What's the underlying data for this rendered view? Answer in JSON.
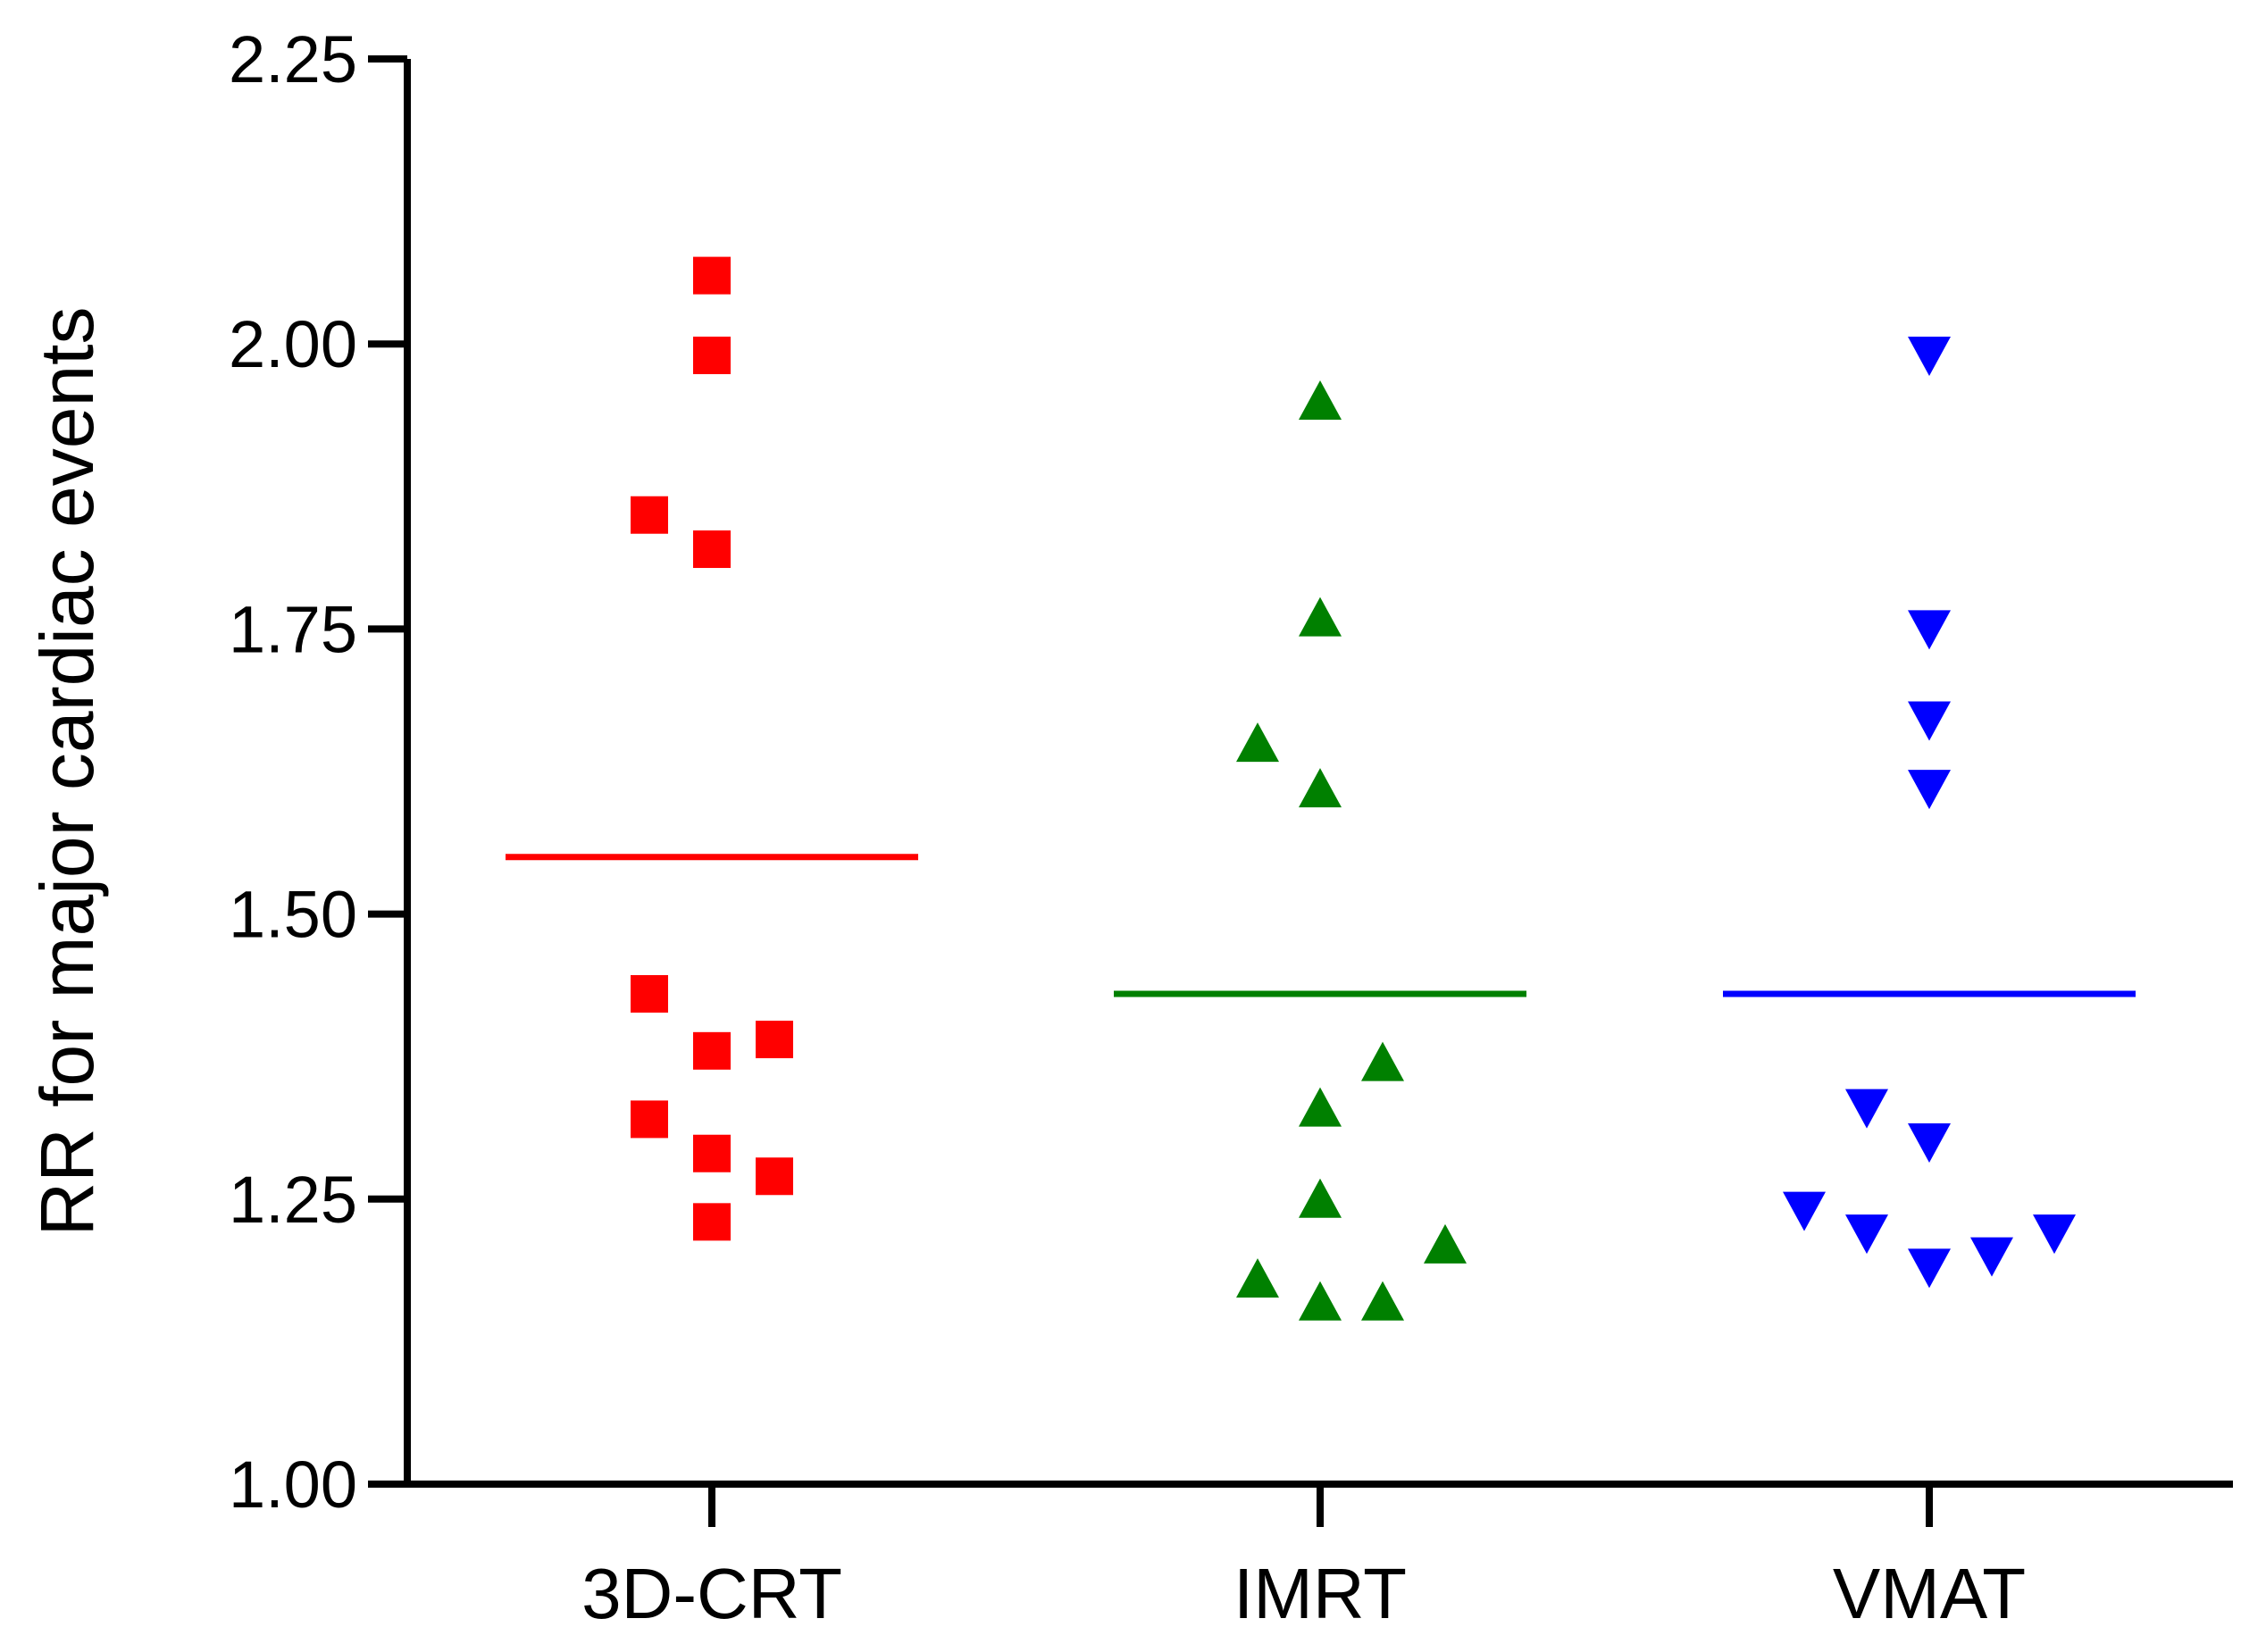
{
  "chart_data": {
    "type": "scatter",
    "title": "",
    "xlabel": "",
    "ylabel": "RR for major cardiac events",
    "ylim": [
      1.0,
      2.25
    ],
    "yticks": [
      1.0,
      1.25,
      1.5,
      1.75,
      2.0,
      2.25
    ],
    "ytick_labels": [
      "1.00",
      "1.25",
      "1.50",
      "1.75",
      "2.00",
      "2.25"
    ],
    "categories": [
      "3D-CRT",
      "IMRT",
      "VMAT"
    ],
    "grid": false,
    "legend": "none",
    "series": [
      {
        "name": "3D-CRT",
        "color": "#ff0000",
        "marker": "square",
        "mean": 1.55,
        "points": [
          {
            "x": 0,
            "y": 2.06
          },
          {
            "x": 0,
            "y": 1.99
          },
          {
            "x": -1,
            "y": 1.85
          },
          {
            "x": 0,
            "y": 1.82
          },
          {
            "x": -1,
            "y": 1.43
          },
          {
            "x": 1,
            "y": 1.39
          },
          {
            "x": 0,
            "y": 1.38
          },
          {
            "x": -1,
            "y": 1.32
          },
          {
            "x": 0,
            "y": 1.29
          },
          {
            "x": 1,
            "y": 1.27
          },
          {
            "x": 0,
            "y": 1.23
          }
        ]
      },
      {
        "name": "IMRT",
        "color": "#008000",
        "marker": "triangle-up",
        "mean": 1.43,
        "points": [
          {
            "x": 0,
            "y": 1.95
          },
          {
            "x": 0,
            "y": 1.76
          },
          {
            "x": -1,
            "y": 1.65
          },
          {
            "x": 0,
            "y": 1.61
          },
          {
            "x": 1,
            "y": 1.37
          },
          {
            "x": 0,
            "y": 1.33
          },
          {
            "x": 0,
            "y": 1.25
          },
          {
            "x": 2,
            "y": 1.21
          },
          {
            "x": -1,
            "y": 1.18
          },
          {
            "x": 0,
            "y": 1.16
          },
          {
            "x": 1,
            "y": 1.16
          }
        ]
      },
      {
        "name": "VMAT",
        "color": "#0000ff",
        "marker": "triangle-down",
        "mean": 1.43,
        "points": [
          {
            "x": 0,
            "y": 1.99
          },
          {
            "x": 0,
            "y": 1.75
          },
          {
            "x": 0,
            "y": 1.67
          },
          {
            "x": 0,
            "y": 1.61
          },
          {
            "x": -1,
            "y": 1.33
          },
          {
            "x": 0,
            "y": 1.3
          },
          {
            "x": -2,
            "y": 1.24
          },
          {
            "x": -1,
            "y": 1.22
          },
          {
            "x": 2,
            "y": 1.22
          },
          {
            "x": 1,
            "y": 1.2
          },
          {
            "x": 0,
            "y": 1.19
          }
        ]
      }
    ]
  }
}
